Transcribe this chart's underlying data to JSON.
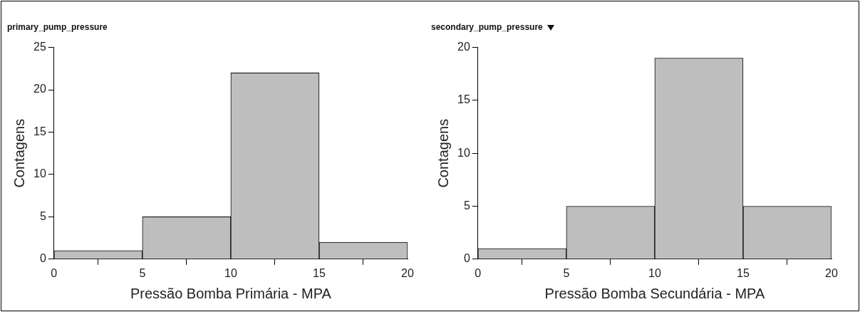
{
  "chart_data": [
    {
      "type": "histogram",
      "title": "primary_pump_pressure",
      "xlabel": "Pressão Bomba Primária - MPA",
      "ylabel": "Contagens",
      "bins": [
        0,
        5,
        10,
        15,
        20
      ],
      "values": [
        1,
        5,
        22,
        2
      ],
      "color": "#bebebe",
      "xlim": [
        0,
        20
      ],
      "xticks": [
        0,
        5,
        10,
        15,
        20
      ],
      "ylim": [
        0,
        25
      ],
      "yticks": [
        0,
        5,
        10,
        15,
        20,
        25
      ],
      "grid": false
    },
    {
      "type": "histogram",
      "title": "secondary_pump_pressure",
      "xlabel": "Pressão Bomba Secundária - MPA",
      "ylabel": "Contagens",
      "bins": [
        0,
        5,
        10,
        15,
        20
      ],
      "values": [
        1,
        5,
        19,
        5
      ],
      "color": "#bebebe",
      "xlim": [
        0,
        20
      ],
      "xticks": [
        0,
        5,
        10,
        15,
        20
      ],
      "ylim": [
        0,
        20
      ],
      "yticks": [
        0,
        5,
        10,
        15,
        20
      ],
      "grid": false
    }
  ]
}
